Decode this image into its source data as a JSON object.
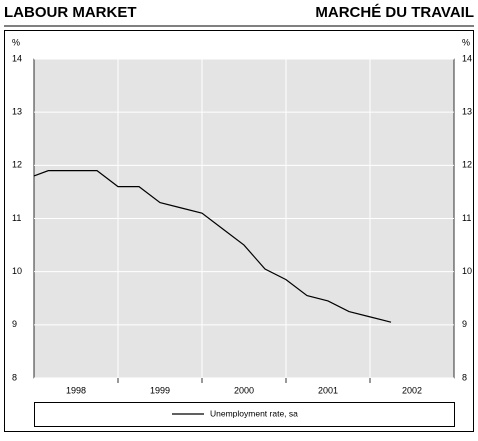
{
  "chart_data": {
    "type": "line",
    "title": "LABOUR MARKET",
    "title_fr": "MARCHÉ DU TRAVAIL",
    "ylabel": "%",
    "y2label": "%",
    "x": [
      1998.0,
      1998.17,
      1998.25,
      1998.5,
      1998.75,
      1999.0,
      1999.25,
      1999.5,
      1999.75,
      2000.0,
      2000.25,
      2000.5,
      2000.75,
      2001.0,
      2001.25,
      2001.5,
      2001.75,
      2002.0,
      2002.25
    ],
    "series": [
      {
        "name": "Unemployment rate, sa",
        "color": "#000000",
        "values": [
          11.8,
          11.9,
          11.9,
          11.9,
          11.9,
          11.6,
          11.6,
          11.3,
          11.2,
          11.1,
          10.8,
          10.5,
          10.05,
          9.85,
          9.55,
          9.45,
          9.25,
          9.15,
          9.05
        ]
      }
    ],
    "xlim": [
      1998.0,
      2003.0
    ],
    "xticks": [
      {
        "value": 1998.5,
        "label": "1998"
      },
      {
        "value": 1999.5,
        "label": "1999"
      },
      {
        "value": 2000.5,
        "label": "2000"
      },
      {
        "value": 2001.5,
        "label": "2001"
      },
      {
        "value": 2002.5,
        "label": "2002"
      }
    ],
    "xgrid": [
      1999,
      2000,
      2001,
      2002
    ],
    "ylim": [
      8,
      14
    ],
    "yticks": [
      8,
      9,
      10,
      11,
      12,
      13,
      14
    ],
    "y2lim": [
      8,
      14
    ],
    "y2ticks": [
      8,
      9,
      10,
      11,
      12,
      13,
      14
    ],
    "grid": true,
    "legend": "bottom"
  }
}
